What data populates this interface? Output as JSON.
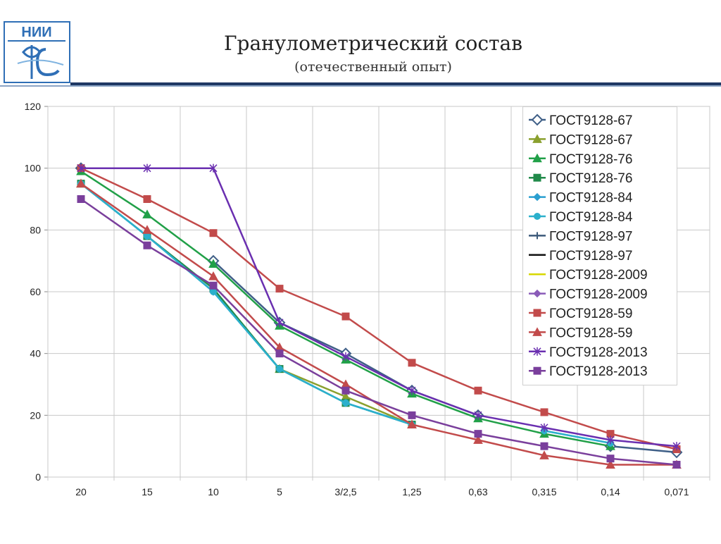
{
  "header": {
    "logo_text": "НИИ",
    "title": "Гранулометрический состав",
    "subtitle": "(отечественный опыт)"
  },
  "colors": {
    "header_rule": "#1f3864",
    "header_rule_light": "#8aa3c4",
    "logo_blue": "#2f6fb6"
  },
  "chart_data": {
    "type": "line",
    "categories": [
      "20",
      "15",
      "10",
      "5",
      "3/2,5",
      "1,25",
      "0,63",
      "0,315",
      "0,14",
      "0,071"
    ],
    "ylim": [
      0,
      120
    ],
    "yticks": [
      0,
      20,
      40,
      60,
      80,
      100,
      120
    ],
    "grid": true,
    "legend_position": "top-right",
    "series": [
      {
        "name": "ГОСТ9128-67",
        "color": "#3f5f87",
        "marker": "diamond-open",
        "values": [
          100,
          null,
          70,
          50,
          40,
          28,
          20,
          null,
          10,
          8
        ]
      },
      {
        "name": "ГОСТ9128-67",
        "color": "#8aa02e",
        "marker": "triangle",
        "values": [
          95,
          null,
          null,
          35,
          26,
          17,
          null,
          null,
          null,
          null
        ]
      },
      {
        "name": "ГОСТ9128-76",
        "color": "#21a048",
        "marker": "triangle",
        "values": [
          99,
          85,
          69,
          49,
          38,
          27,
          19,
          14,
          10,
          null
        ]
      },
      {
        "name": "ГОСТ9128-76",
        "color": "#218a4a",
        "marker": "square",
        "values": [
          95,
          78,
          61,
          35,
          24,
          17,
          null,
          null,
          null,
          null
        ]
      },
      {
        "name": "ГОСТ9128-84",
        "color": "#2a9fd0",
        "marker": "diamond",
        "values": [
          95,
          78,
          60,
          35,
          24,
          17,
          null,
          15,
          11,
          null
        ]
      },
      {
        "name": "ГОСТ9128-84",
        "color": "#2bb0cc",
        "marker": "circle",
        "values": [
          95,
          78,
          60,
          35,
          24,
          17,
          null,
          15,
          11,
          null
        ]
      },
      {
        "name": "ГОСТ9128-97",
        "color": "#3c5a7a",
        "marker": "plus",
        "values": [
          null,
          null,
          null,
          null,
          null,
          null,
          null,
          null,
          null,
          null
        ]
      },
      {
        "name": "ГОСТ9128-97",
        "color": "#111111",
        "marker": "dash",
        "values": [
          null,
          null,
          null,
          null,
          null,
          null,
          null,
          null,
          null,
          null
        ]
      },
      {
        "name": "ГОСТ9128-2009",
        "color": "#d7d700",
        "marker": "dash",
        "values": [
          null,
          null,
          null,
          null,
          null,
          null,
          null,
          null,
          null,
          10
        ]
      },
      {
        "name": "ГОСТ9128-2009",
        "color": "#8a5bb8",
        "marker": "diamond",
        "values": [
          null,
          null,
          null,
          null,
          null,
          null,
          null,
          null,
          null,
          null
        ]
      },
      {
        "name": "ГОСТ9128-59",
        "color": "#c24b4b",
        "marker": "square",
        "values": [
          100,
          90,
          79,
          61,
          52,
          37,
          28,
          21,
          14,
          9
        ]
      },
      {
        "name": "ГОСТ9128-59",
        "color": "#c24b4b",
        "marker": "triangle",
        "values": [
          95,
          80,
          65,
          42,
          30,
          17,
          12,
          7,
          4,
          4
        ]
      },
      {
        "name": "ГОСТ9128-2013",
        "color": "#6a2fb0",
        "marker": "star",
        "values": [
          100,
          100,
          100,
          50,
          39,
          28,
          20,
          16,
          12,
          10
        ]
      },
      {
        "name": "ГОСТ9128-2013",
        "color": "#7a3f9c",
        "marker": "square",
        "values": [
          90,
          75,
          62,
          40,
          28,
          20,
          14,
          10,
          6,
          4
        ]
      }
    ]
  }
}
